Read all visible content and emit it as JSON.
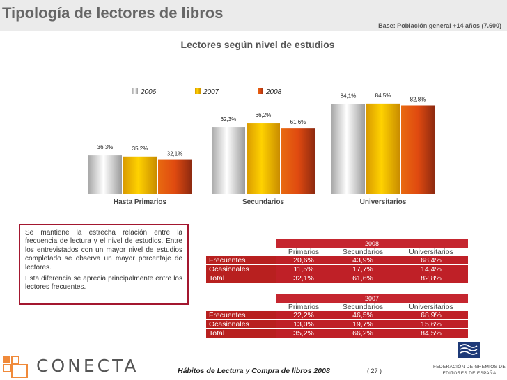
{
  "header": {
    "title": "Tipología de lectores de libros",
    "base": "Base: Población general +14 años (7.600)"
  },
  "chart_data": {
    "type": "bar",
    "title": "Lectores según nivel de estudios",
    "categories": [
      "Hasta Primarios",
      "Secundarios",
      "Universitarios"
    ],
    "series": [
      {
        "name": "2006",
        "values": [
          36.3,
          62.3,
          84.1
        ],
        "labels": [
          "36,3%",
          "62,3%",
          "84,1%"
        ],
        "color": "#d8d8d8"
      },
      {
        "name": "2007",
        "values": [
          35.2,
          66.2,
          84.5
        ],
        "labels": [
          "35,2%",
          "66,2%",
          "84,5%"
        ],
        "color": "#f1b800"
      },
      {
        "name": "2008",
        "values": [
          32.1,
          61.6,
          82.8
        ],
        "labels": [
          "32,1%",
          "61,6%",
          "82,8%"
        ],
        "color": "#e05010"
      }
    ],
    "legend": "top",
    "grid": false
  },
  "note": {
    "p1": "Se mantiene la estrecha relación entre la frecuencia de lectura y el nivel de estudios. Entre los entrevistados con un mayor nivel de estudios completado se observa un mayor porcentaje de lectores.",
    "p2": "Esta diferencia se aprecia principalmente entre los lectores frecuentes."
  },
  "tables": [
    {
      "year": "2008",
      "columns": [
        "Primarios",
        "Secundarios",
        "Universitarios"
      ],
      "rows": [
        {
          "label": "Frecuentes",
          "values": [
            "20,6%",
            "43,9%",
            "68,4%"
          ]
        },
        {
          "label": "Ocasionales",
          "values": [
            "11,5%",
            "17,7%",
            "14,4%"
          ]
        },
        {
          "label": "Total",
          "values": [
            "32,1%",
            "61,6%",
            "82,8%"
          ]
        }
      ]
    },
    {
      "year": "2007",
      "columns": [
        "Primarios",
        "Secundarios",
        "Universitarios"
      ],
      "rows": [
        {
          "label": "Frecuentes",
          "values": [
            "22,2%",
            "46,5%",
            "68,9%"
          ]
        },
        {
          "label": "Ocasionales",
          "values": [
            "13,0%",
            "19,7%",
            "15,6%"
          ]
        },
        {
          "label": "Total",
          "values": [
            "35,2%",
            "66,2%",
            "84,5%"
          ]
        }
      ]
    }
  ],
  "footer": {
    "title": "Hábitos de Lectura y Compra de libros 2008",
    "page": "( 27 )",
    "brand": "CONECTA",
    "federation": "FEDERACIÓN DE GREMIOS DE EDITORES DE ESPAÑA"
  }
}
